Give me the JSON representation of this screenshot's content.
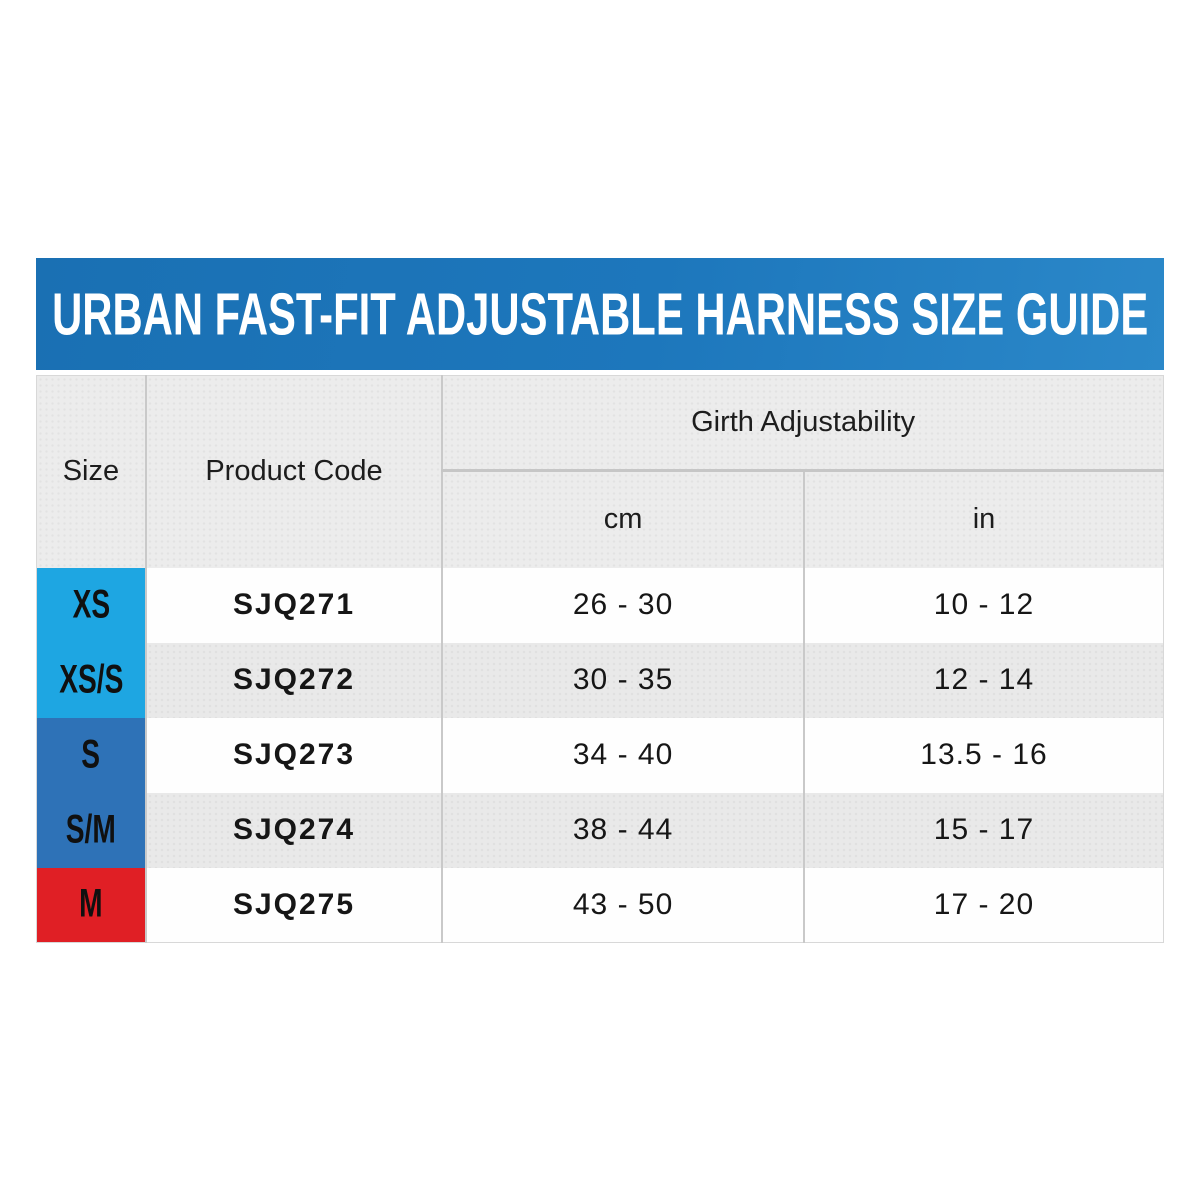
{
  "banner": {
    "title": "URBAN FAST-FIT ADJUSTABLE HARNESS SIZE GUIDE",
    "bg_color_left": "#1a70b3",
    "bg_color_right": "#2b88c9",
    "text_color": "#ffffff"
  },
  "table": {
    "headers": {
      "size": "Size",
      "product_code": "Product Code",
      "girth": "Girth Adjustability",
      "cm": "cm",
      "in": "in"
    },
    "rows": [
      {
        "size": "XS",
        "size_color": "#1ea6e2",
        "code": "SJQ271",
        "cm": "26 - 30",
        "in": "10 - 12"
      },
      {
        "size": "XS/S",
        "size_color": "#1ea6e2",
        "code": "SJQ272",
        "cm": "30 - 35",
        "in": "12 - 14"
      },
      {
        "size": "S",
        "size_color": "#2e72b7",
        "code": "SJQ273",
        "cm": "34 - 40",
        "in": "13.5 - 16"
      },
      {
        "size": "S/M",
        "size_color": "#2e72b7",
        "code": "SJQ274",
        "cm": "38 - 44",
        "in": "15 - 17"
      },
      {
        "size": "M",
        "size_color": "#e01f25",
        "code": "SJQ275",
        "cm": "43 - 50",
        "in": "17 - 20"
      }
    ],
    "stripe_color": "#e9e9e9",
    "header_bg": "#ececec",
    "border_color": "#c9c9c9"
  },
  "chart_data": {
    "type": "table",
    "title": "URBAN FAST-FIT ADJUSTABLE HARNESS SIZE GUIDE",
    "columns": [
      "Size",
      "Product Code",
      "Girth Adjustability cm",
      "Girth Adjustability in"
    ],
    "rows": [
      [
        "XS",
        "SJQ271",
        "26 - 30",
        "10 - 12"
      ],
      [
        "XS/S",
        "SJQ272",
        "30 - 35",
        "12 - 14"
      ],
      [
        "S",
        "SJQ273",
        "34 - 40",
        "13.5 - 16"
      ],
      [
        "S/M",
        "SJQ274",
        "38 - 44",
        "15 - 17"
      ],
      [
        "M",
        "SJQ275",
        "43 - 50",
        "17 - 20"
      ]
    ],
    "size_group_colors": {
      "XS_XS-S": "#1ea6e2",
      "S_S-M": "#2e72b7",
      "M": "#e01f25"
    }
  }
}
